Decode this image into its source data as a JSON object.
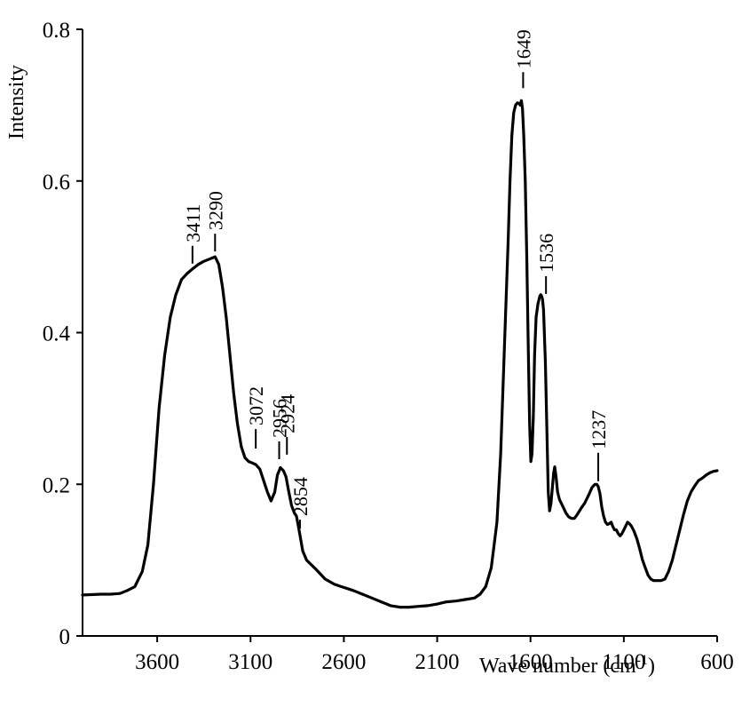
{
  "chart_data": {
    "type": "line",
    "title": "",
    "xlabel": "Wave number (cm",
    "xlabel_sup": "-1",
    "xlabel_close": ")",
    "ylabel": "Intensity",
    "xlim": [
      4000,
      600
    ],
    "ylim": [
      0,
      0.8
    ],
    "x_reversed": true,
    "grid": false,
    "x_ticks": [
      3600,
      3100,
      2600,
      2100,
      1600,
      1100,
      600
    ],
    "x_tick_labels": [
      "3600",
      "3100",
      "2600",
      "2100",
      "1600",
      "1100",
      "600"
    ],
    "y_ticks": [
      0,
      0.2,
      0.4,
      0.6,
      0.8
    ],
    "y_tick_labels": [
      "0",
      "0.2",
      "0.4",
      "0.6",
      "0.8"
    ],
    "series": [
      {
        "color": "#000000",
        "x": [
          4000,
          3900,
          3850,
          3800,
          3760,
          3720,
          3680,
          3650,
          3620,
          3590,
          3560,
          3530,
          3500,
          3470,
          3440,
          3411,
          3380,
          3350,
          3320,
          3300,
          3290,
          3270,
          3250,
          3230,
          3210,
          3190,
          3170,
          3150,
          3130,
          3110,
          3090,
          3072,
          3050,
          3030,
          3010,
          2990,
          2970,
          2956,
          2940,
          2924,
          2910,
          2895,
          2880,
          2865,
          2854,
          2840,
          2820,
          2800,
          2750,
          2700,
          2650,
          2600,
          2550,
          2500,
          2450,
          2400,
          2350,
          2300,
          2250,
          2200,
          2150,
          2100,
          2050,
          2000,
          1950,
          1900,
          1870,
          1840,
          1810,
          1780,
          1760,
          1740,
          1720,
          1710,
          1700,
          1690,
          1680,
          1670,
          1660,
          1655,
          1649,
          1643,
          1636,
          1628,
          1620,
          1612,
          1605,
          1598,
          1592,
          1585,
          1578,
          1570,
          1560,
          1550,
          1545,
          1540,
          1536,
          1530,
          1520,
          1512,
          1505,
          1498,
          1490,
          1483,
          1476,
          1470,
          1463,
          1455,
          1445,
          1435,
          1425,
          1410,
          1395,
          1380,
          1365,
          1350,
          1330,
          1310,
          1290,
          1270,
          1255,
          1245,
          1237,
          1228,
          1218,
          1208,
          1198,
          1188,
          1178,
          1168,
          1160,
          1150,
          1140,
          1130,
          1120,
          1110,
          1100,
          1090,
          1080,
          1070,
          1060,
          1045,
          1030,
          1015,
          1000,
          985,
          970,
          955,
          940,
          920,
          900,
          880,
          860,
          840,
          820,
          800,
          780,
          760,
          740,
          720,
          700,
          680,
          660,
          640,
          620,
          600
        ],
        "y": [
          0.054,
          0.055,
          0.055,
          0.056,
          0.06,
          0.065,
          0.085,
          0.12,
          0.2,
          0.3,
          0.37,
          0.42,
          0.45,
          0.47,
          0.478,
          0.484,
          0.49,
          0.494,
          0.497,
          0.499,
          0.5,
          0.49,
          0.46,
          0.42,
          0.37,
          0.32,
          0.28,
          0.25,
          0.235,
          0.23,
          0.228,
          0.226,
          0.22,
          0.205,
          0.19,
          0.178,
          0.19,
          0.212,
          0.222,
          0.218,
          0.21,
          0.19,
          0.172,
          0.162,
          0.158,
          0.14,
          0.112,
          0.1,
          0.088,
          0.075,
          0.068,
          0.064,
          0.06,
          0.055,
          0.05,
          0.045,
          0.04,
          0.038,
          0.038,
          0.039,
          0.04,
          0.042,
          0.045,
          0.046,
          0.048,
          0.05,
          0.055,
          0.065,
          0.09,
          0.15,
          0.24,
          0.38,
          0.52,
          0.6,
          0.66,
          0.69,
          0.7,
          0.703,
          0.702,
          0.7,
          0.706,
          0.695,
          0.66,
          0.6,
          0.5,
          0.38,
          0.28,
          0.23,
          0.24,
          0.29,
          0.37,
          0.42,
          0.438,
          0.448,
          0.45,
          0.448,
          0.444,
          0.43,
          0.36,
          0.27,
          0.19,
          0.165,
          0.175,
          0.195,
          0.215,
          0.223,
          0.21,
          0.19,
          0.18,
          0.175,
          0.17,
          0.162,
          0.157,
          0.155,
          0.155,
          0.16,
          0.168,
          0.175,
          0.185,
          0.196,
          0.2,
          0.2,
          0.197,
          0.188,
          0.17,
          0.158,
          0.15,
          0.147,
          0.148,
          0.15,
          0.145,
          0.14,
          0.14,
          0.135,
          0.132,
          0.135,
          0.14,
          0.145,
          0.15,
          0.148,
          0.145,
          0.138,
          0.128,
          0.115,
          0.1,
          0.09,
          0.08,
          0.075,
          0.073,
          0.073,
          0.073,
          0.075,
          0.085,
          0.1,
          0.12,
          0.14,
          0.16,
          0.178,
          0.19,
          0.198,
          0.205,
          0.208,
          0.212,
          0.215,
          0.217,
          0.218
        ]
      }
    ],
    "annotations": [
      {
        "label": "3411",
        "x": 3411
      },
      {
        "label": "3290",
        "x": 3290
      },
      {
        "label": "3072",
        "x": 3072
      },
      {
        "label": "2956",
        "x": 2956
      },
      {
        "label": "2924",
        "x": 2924
      },
      {
        "label": "2854",
        "x": 2854
      },
      {
        "label": "1649",
        "x": 1649
      },
      {
        "label": "1536",
        "x": 1536
      },
      {
        "label": "1237",
        "x": 1237
      }
    ]
  }
}
